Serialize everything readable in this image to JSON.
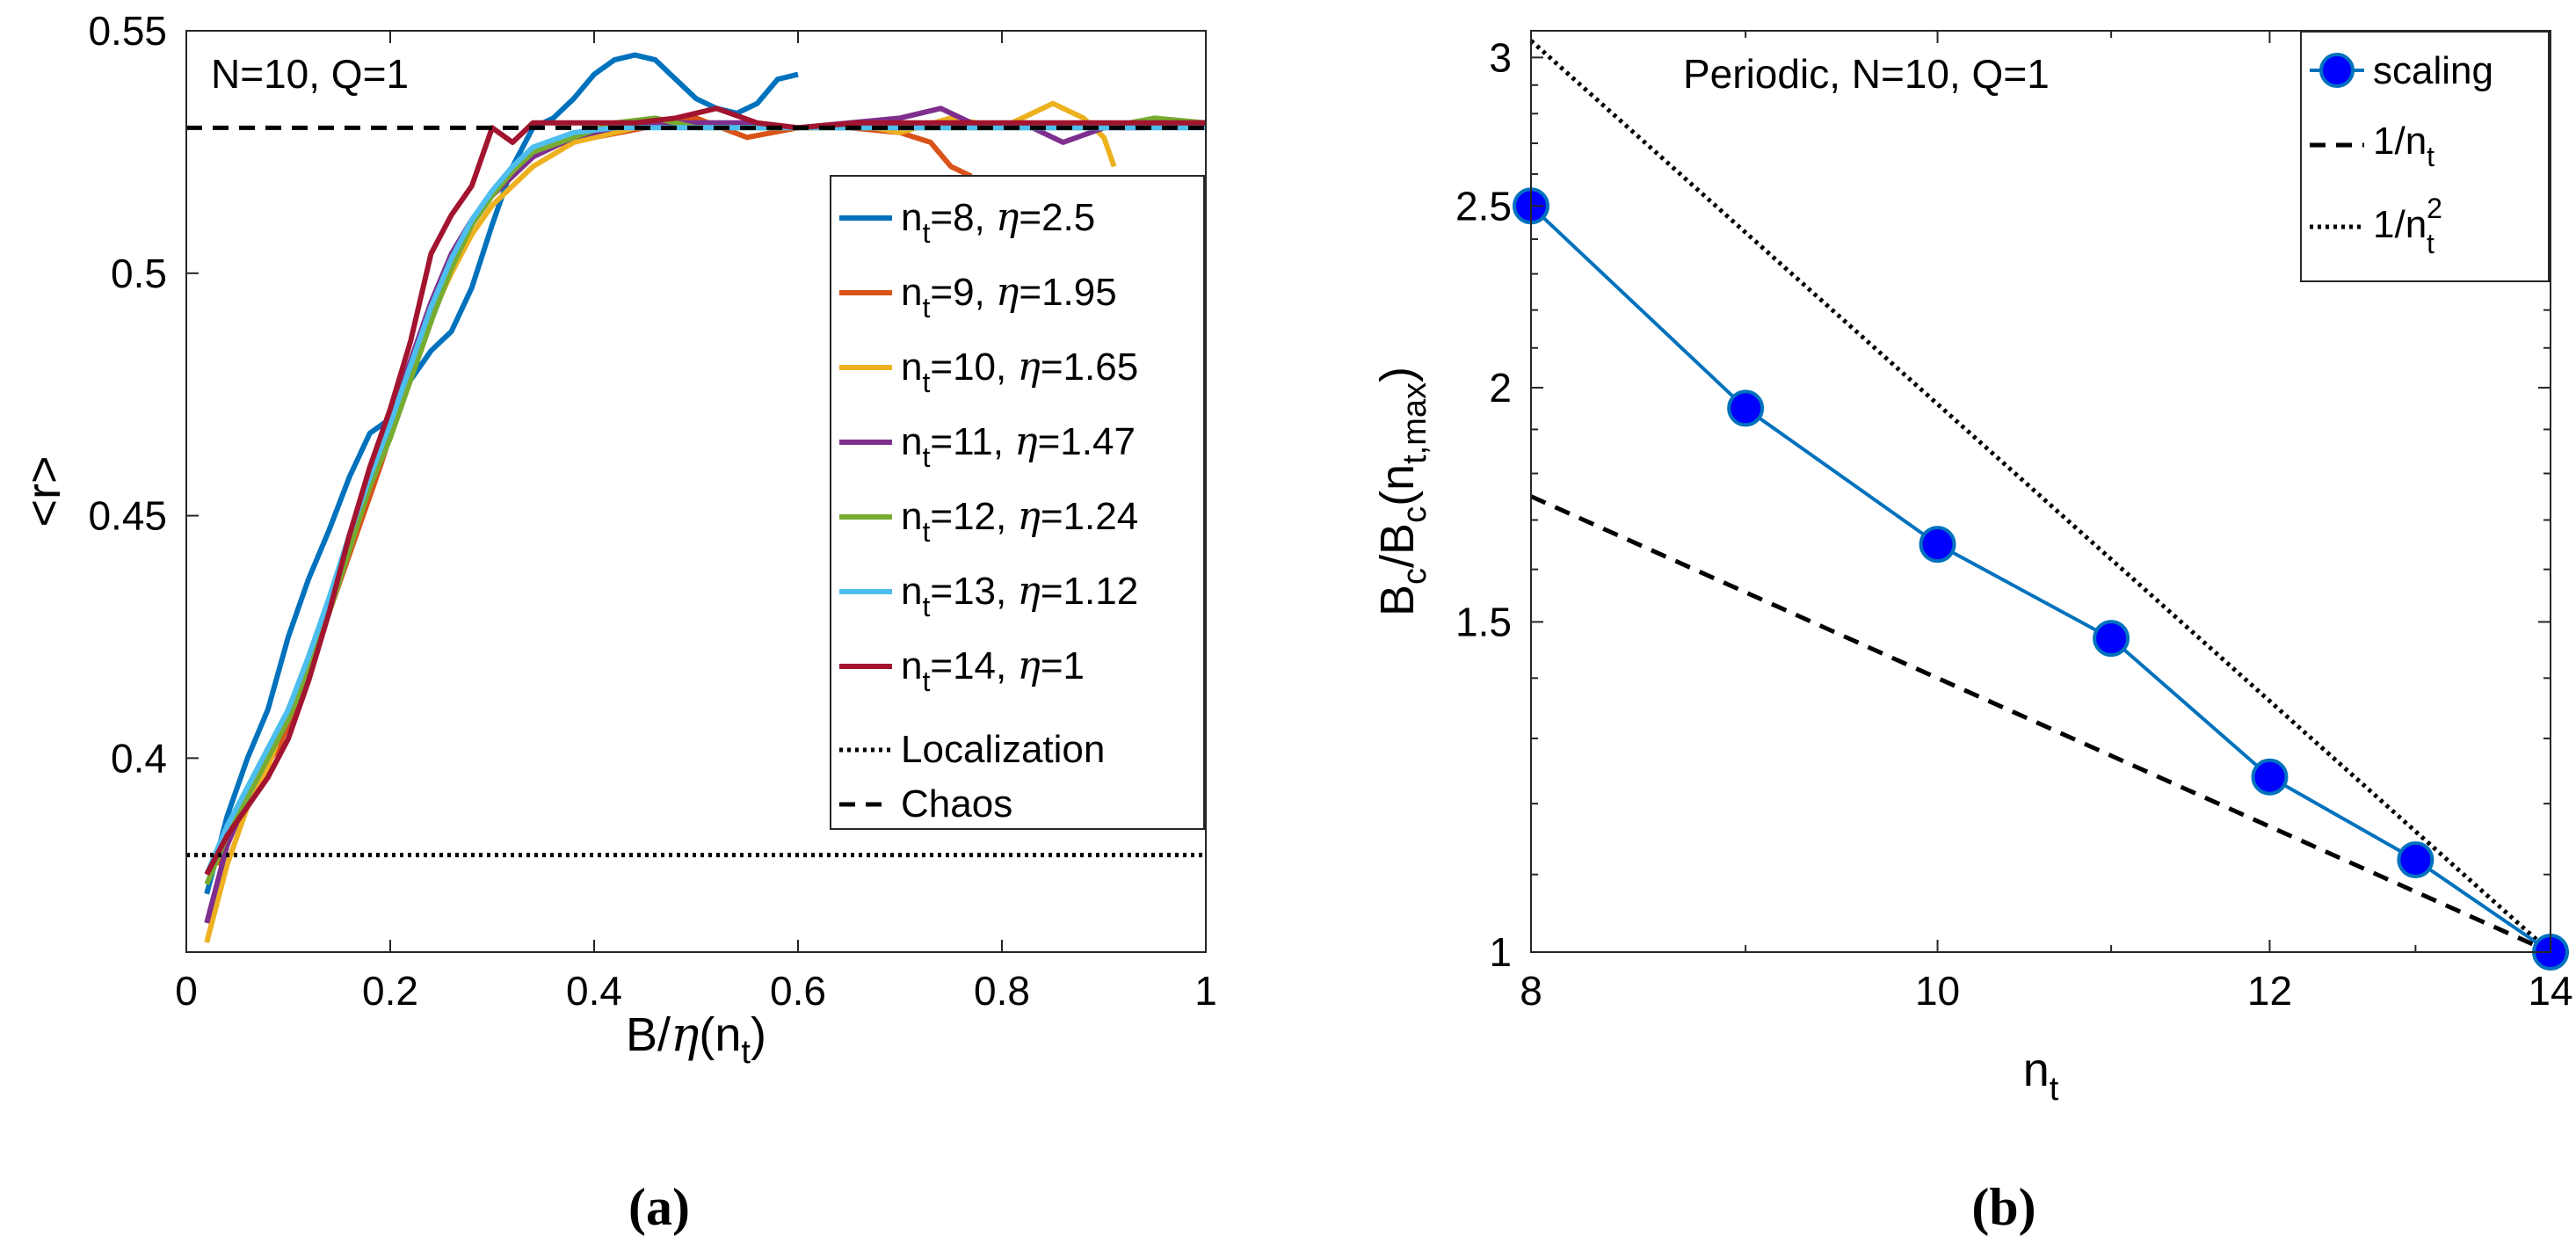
{
  "chart_data": [
    {
      "type": "line",
      "panel_label": "(a)",
      "title": "N=10, Q=1",
      "xlabel": "B/η(n_t)",
      "ylabel": "<r>",
      "xlim": [
        0,
        1
      ],
      "ylim": [
        0.36,
        0.55
      ],
      "xticks": [
        0,
        0.2,
        0.4,
        0.6,
        0.8,
        1
      ],
      "xtick_labels": [
        "0",
        "0.2",
        "0.4",
        "0.6",
        "0.8",
        "1"
      ],
      "yticks": [
        0.4,
        0.45,
        0.5,
        0.55
      ],
      "ytick_labels": [
        "0.4",
        "0.45",
        "0.5",
        "0.55"
      ],
      "grid": false,
      "legend_position": "right",
      "series": [
        {
          "name": "n_t=8, η=2.5",
          "label_main": "n",
          "label_sub": "t",
          "label_rest": "=8, ",
          "eta": "η",
          "eta_val": "=2.5",
          "color": "#0072BD",
          "x": [
            0.02,
            0.04,
            0.06,
            0.08,
            0.1,
            0.12,
            0.14,
            0.16,
            0.18,
            0.2,
            0.22,
            0.24,
            0.26,
            0.28,
            0.3,
            0.32,
            0.34,
            0.36,
            0.38,
            0.4,
            0.42,
            0.44,
            0.46,
            0.48,
            0.5,
            0.52,
            0.54,
            0.56,
            0.58,
            0.6
          ],
          "y": [
            0.372,
            0.388,
            0.4,
            0.41,
            0.425,
            0.437,
            0.447,
            0.458,
            0.467,
            0.47,
            0.478,
            0.484,
            0.488,
            0.497,
            0.51,
            0.522,
            0.53,
            0.532,
            0.536,
            0.541,
            0.544,
            0.545,
            0.544,
            0.54,
            0.536,
            0.534,
            0.533,
            0.535,
            0.54,
            0.541
          ]
        },
        {
          "name": "n_t=9, η=1.95",
          "label_main": "n",
          "label_sub": "t",
          "label_rest": "=9, ",
          "eta": "η",
          "eta_val": "=1.95",
          "color": "#D95319",
          "x": [
            0.03,
            0.05,
            0.07,
            0.09,
            0.11,
            0.13,
            0.15,
            0.17,
            0.19,
            0.21,
            0.23,
            0.25,
            0.27,
            0.29,
            0.31,
            0.33,
            0.35,
            0.4,
            0.45,
            0.5,
            0.55,
            0.6,
            0.65,
            0.7,
            0.73,
            0.75,
            0.77
          ],
          "y": [
            0.378,
            0.388,
            0.396,
            0.402,
            0.412,
            0.424,
            0.436,
            0.448,
            0.46,
            0.473,
            0.484,
            0.496,
            0.507,
            0.514,
            0.518,
            0.522,
            0.526,
            0.528,
            0.53,
            0.532,
            0.528,
            0.53,
            0.53,
            0.529,
            0.527,
            0.522,
            0.52
          ]
        },
        {
          "name": "n_t=10, η=1.65",
          "label_main": "n",
          "label_sub": "t",
          "label_rest": "=10, ",
          "eta": "η",
          "eta_val": "=1.65",
          "color": "#EDB120",
          "x": [
            0.02,
            0.04,
            0.06,
            0.08,
            0.1,
            0.12,
            0.14,
            0.16,
            0.18,
            0.2,
            0.22,
            0.24,
            0.26,
            0.28,
            0.3,
            0.32,
            0.34,
            0.38,
            0.42,
            0.46,
            0.5,
            0.55,
            0.6,
            0.65,
            0.7,
            0.75,
            0.8,
            0.85,
            0.88,
            0.9,
            0.91
          ],
          "y": [
            0.362,
            0.378,
            0.39,
            0.398,
            0.41,
            0.42,
            0.432,
            0.444,
            0.456,
            0.468,
            0.48,
            0.491,
            0.5,
            0.508,
            0.514,
            0.518,
            0.522,
            0.527,
            0.529,
            0.531,
            0.53,
            0.531,
            0.53,
            0.531,
            0.529,
            0.532,
            0.53,
            0.535,
            0.532,
            0.528,
            0.522
          ]
        },
        {
          "name": "n_t=11, η=1.47",
          "label_main": "n",
          "label_sub": "t",
          "label_rest": "=11, ",
          "eta": "η",
          "eta_val": "=1.47",
          "color": "#7E2F8E",
          "x": [
            0.02,
            0.04,
            0.06,
            0.08,
            0.1,
            0.12,
            0.14,
            0.16,
            0.18,
            0.2,
            0.22,
            0.24,
            0.26,
            0.28,
            0.3,
            0.32,
            0.34,
            0.38,
            0.42,
            0.46,
            0.5,
            0.55,
            0.6,
            0.65,
            0.7,
            0.74,
            0.78,
            0.82,
            0.86,
            0.9,
            0.94,
            0.98,
            1.0
          ],
          "y": [
            0.366,
            0.382,
            0.392,
            0.4,
            0.408,
            0.42,
            0.432,
            0.446,
            0.458,
            0.47,
            0.482,
            0.494,
            0.504,
            0.511,
            0.516,
            0.52,
            0.524,
            0.528,
            0.53,
            0.531,
            0.531,
            0.531,
            0.53,
            0.531,
            0.532,
            0.534,
            0.53,
            0.531,
            0.527,
            0.53,
            0.53,
            0.531,
            0.531
          ]
        },
        {
          "name": "n_t=12, η=1.24",
          "label_main": "n",
          "label_sub": "t",
          "label_rest": "=12, ",
          "eta": "η",
          "eta_val": "=1.24",
          "color": "#77AC30",
          "x": [
            0.02,
            0.04,
            0.06,
            0.08,
            0.1,
            0.12,
            0.14,
            0.16,
            0.18,
            0.2,
            0.22,
            0.24,
            0.26,
            0.28,
            0.3,
            0.32,
            0.34,
            0.38,
            0.42,
            0.46,
            0.5,
            0.6,
            0.7,
            0.8,
            0.9,
            0.95,
            1.0
          ],
          "y": [
            0.374,
            0.384,
            0.392,
            0.4,
            0.408,
            0.418,
            0.43,
            0.443,
            0.456,
            0.466,
            0.478,
            0.49,
            0.501,
            0.51,
            0.516,
            0.521,
            0.525,
            0.528,
            0.531,
            0.532,
            0.53,
            0.53,
            0.53,
            0.53,
            0.53,
            0.532,
            0.531
          ]
        },
        {
          "name": "n_t=13, η=1.12",
          "label_main": "n",
          "label_sub": "t",
          "label_rest": "=13, ",
          "eta": "η",
          "eta_val": "=1.12",
          "color": "#4DBEEE",
          "x": [
            0.02,
            0.04,
            0.06,
            0.08,
            0.1,
            0.12,
            0.14,
            0.16,
            0.18,
            0.2,
            0.22,
            0.24,
            0.26,
            0.28,
            0.3,
            0.32,
            0.34,
            0.38,
            0.42,
            0.46,
            0.5,
            0.6,
            0.7,
            0.8,
            0.9,
            1.0
          ],
          "y": [
            0.376,
            0.386,
            0.394,
            0.402,
            0.41,
            0.421,
            0.433,
            0.446,
            0.458,
            0.469,
            0.481,
            0.493,
            0.503,
            0.511,
            0.517,
            0.522,
            0.526,
            0.529,
            0.53,
            0.53,
            0.53,
            0.53,
            0.53,
            0.53,
            0.53,
            0.53
          ]
        },
        {
          "name": "n_t=14, η=1",
          "label_main": "n",
          "label_sub": "t",
          "label_rest": "=14, ",
          "eta": "η",
          "eta_val": "=1",
          "color": "#A2142F",
          "x": [
            0.02,
            0.04,
            0.06,
            0.08,
            0.1,
            0.12,
            0.14,
            0.16,
            0.18,
            0.2,
            0.22,
            0.24,
            0.26,
            0.28,
            0.3,
            0.32,
            0.34,
            0.36,
            0.4,
            0.44,
            0.48,
            0.52,
            0.56,
            0.6,
            0.66,
            0.72,
            0.8,
            0.9,
            1.0
          ],
          "y": [
            0.376,
            0.384,
            0.39,
            0.396,
            0.404,
            0.416,
            0.43,
            0.446,
            0.46,
            0.472,
            0.486,
            0.504,
            0.512,
            0.518,
            0.53,
            0.527,
            0.531,
            0.531,
            0.531,
            0.531,
            0.532,
            0.534,
            0.531,
            0.53,
            0.531,
            0.531,
            0.531,
            0.531,
            0.531
          ]
        }
      ],
      "reference_lines": [
        {
          "name": "Localization",
          "y": 0.38,
          "style": "dotted",
          "color": "#000000"
        },
        {
          "name": "Chaos",
          "y": 0.53,
          "style": "dashed",
          "color": "#000000"
        }
      ]
    },
    {
      "type": "line",
      "panel_label": "(b)",
      "title": "Periodic, N=10, Q=1",
      "xlabel": "n_t",
      "ylabel": "B_c/B_c(n_t,max)",
      "xscale": "log",
      "yscale": "log",
      "xlim": [
        8,
        14
      ],
      "ylim": [
        1,
        3.1
      ],
      "xticks": [
        8,
        10,
        12,
        14
      ],
      "xtick_labels": [
        "8",
        "10",
        "12",
        "14"
      ],
      "yticks": [
        1,
        1.5,
        2,
        2.5,
        3
      ],
      "ytick_labels": [
        "1",
        "1.5",
        "2",
        "2.5",
        "3"
      ],
      "grid": false,
      "legend_position": "top-right",
      "series": [
        {
          "name": "scaling",
          "style": "solid-marker",
          "color": "#0072BD",
          "marker_color": "#0000FF",
          "x": [
            8,
            9,
            10,
            11,
            12,
            13,
            14
          ],
          "y": [
            2.5,
            1.95,
            1.65,
            1.47,
            1.24,
            1.12,
            1.0
          ]
        },
        {
          "name": "1/n_t",
          "style": "dashed",
          "color": "#000000",
          "x": [
            8,
            14
          ],
          "y": [
            1.75,
            1.0
          ]
        },
        {
          "name": "1/n_t^2",
          "style": "dotted",
          "color": "#000000",
          "x": [
            8,
            14
          ],
          "y": [
            3.0625,
            1.0
          ]
        }
      ]
    }
  ]
}
